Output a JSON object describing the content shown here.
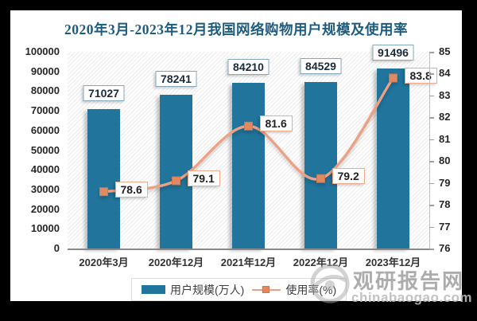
{
  "title": "2020年3月-2023年12月我国网络购物用户规模及使用率",
  "chart_data": {
    "type": "bar+line",
    "title": "2020年3月-2023年12月我国网络购物用户规模及使用率",
    "categories": [
      "2020年3月",
      "2020年12月",
      "2021年12月",
      "2022年12月",
      "2023年12月"
    ],
    "series": [
      {
        "name": "用户规模(万人)",
        "chart_type": "bar",
        "axis": "left",
        "color": "#21749B",
        "values": [
          71027,
          78241,
          84210,
          84529,
          91496
        ],
        "data_labels": [
          "71027",
          "78241",
          "84210",
          "84529",
          "91496"
        ]
      },
      {
        "name": "使用率(%)",
        "chart_type": "line",
        "axis": "right",
        "color": "#ECA184",
        "marker_color": "#E08A62",
        "values": [
          78.6,
          79.1,
          81.6,
          79.2,
          83.8
        ],
        "data_labels": [
          "78.6",
          "79.1",
          "81.6",
          "79.2",
          "83.8"
        ]
      }
    ],
    "left_axis": {
      "min": 0,
      "max": 100000,
      "step": 10000,
      "tick_labels": [
        "100000",
        "90000",
        "80000",
        "70000",
        "60000",
        "50000",
        "40000",
        "30000",
        "20000",
        "10000",
        "0"
      ]
    },
    "right_axis": {
      "min": 76,
      "max": 85,
      "step": 1,
      "tick_labels": [
        "85",
        "84",
        "83",
        "82",
        "81",
        "80",
        "79",
        "78",
        "77",
        "76"
      ]
    },
    "legend_position": "bottom",
    "grid": false,
    "plot_background": "diagonal-hatch"
  },
  "watermark": {
    "name": "观研报告网",
    "domain": "chinabaogao.com"
  }
}
